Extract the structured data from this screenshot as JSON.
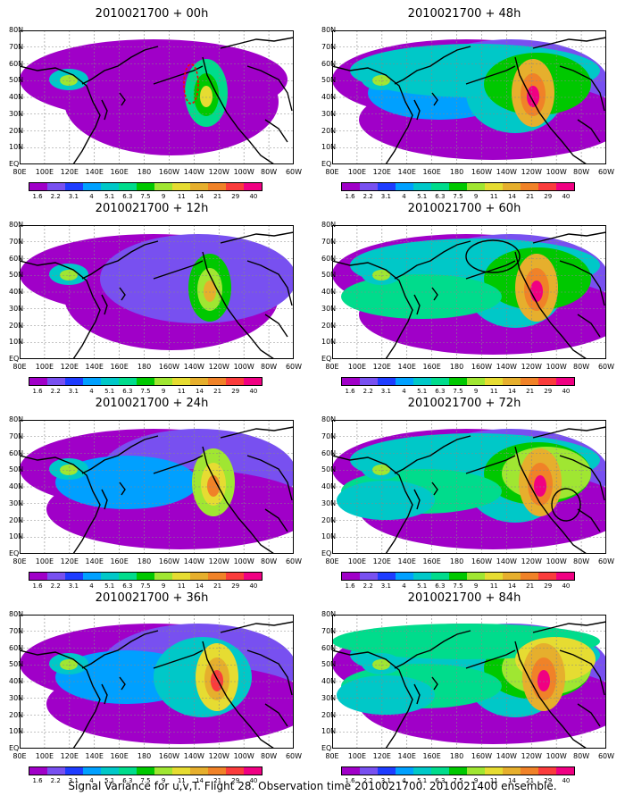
{
  "page": {
    "caption": "Signal Variance for u,v,T. Flight 28. Observation time 2010021700. 2010021400 ensemble."
  },
  "lat_labels": [
    "80N",
    "70N",
    "60N",
    "50N",
    "40N",
    "30N",
    "20N",
    "10N",
    "EQ"
  ],
  "lon_labels": [
    "80E",
    "100E",
    "120E",
    "140E",
    "160E",
    "180",
    "160W",
    "140W",
    "120W",
    "100W",
    "80W",
    "60W"
  ],
  "colorbar": {
    "levels": [
      "1.6",
      "2.2",
      "3.1",
      "4",
      "5.1",
      "6.3",
      "7.5",
      "9",
      "11",
      "14",
      "21",
      "29",
      "40"
    ],
    "colors": [
      "#a000c8",
      "#7850f0",
      "#1e3cff",
      "#00a0ff",
      "#00c8c8",
      "#00dc8c",
      "#00c800",
      "#a0e632",
      "#e6dc32",
      "#e6af2d",
      "#f08228",
      "#fa3c3c",
      "#f00082"
    ]
  },
  "panels": [
    {
      "title": "2010021700 + 00h",
      "intensity": 1,
      "marker": "red-dashed-track"
    },
    {
      "title": "2010021700 + 48h",
      "intensity": 5,
      "marker": ""
    },
    {
      "title": "2010021700 + 12h",
      "intensity": 2,
      "marker": ""
    },
    {
      "title": "2010021700 + 60h",
      "intensity": 6,
      "marker": "black-ellipse"
    },
    {
      "title": "2010021700 + 24h",
      "intensity": 3,
      "marker": ""
    },
    {
      "title": "2010021700 + 72h",
      "intensity": 7,
      "marker": "black-ellipse"
    },
    {
      "title": "2010021700 + 36h",
      "intensity": 4,
      "marker": ""
    },
    {
      "title": "2010021700 + 84h",
      "intensity": 8,
      "marker": ""
    }
  ]
}
